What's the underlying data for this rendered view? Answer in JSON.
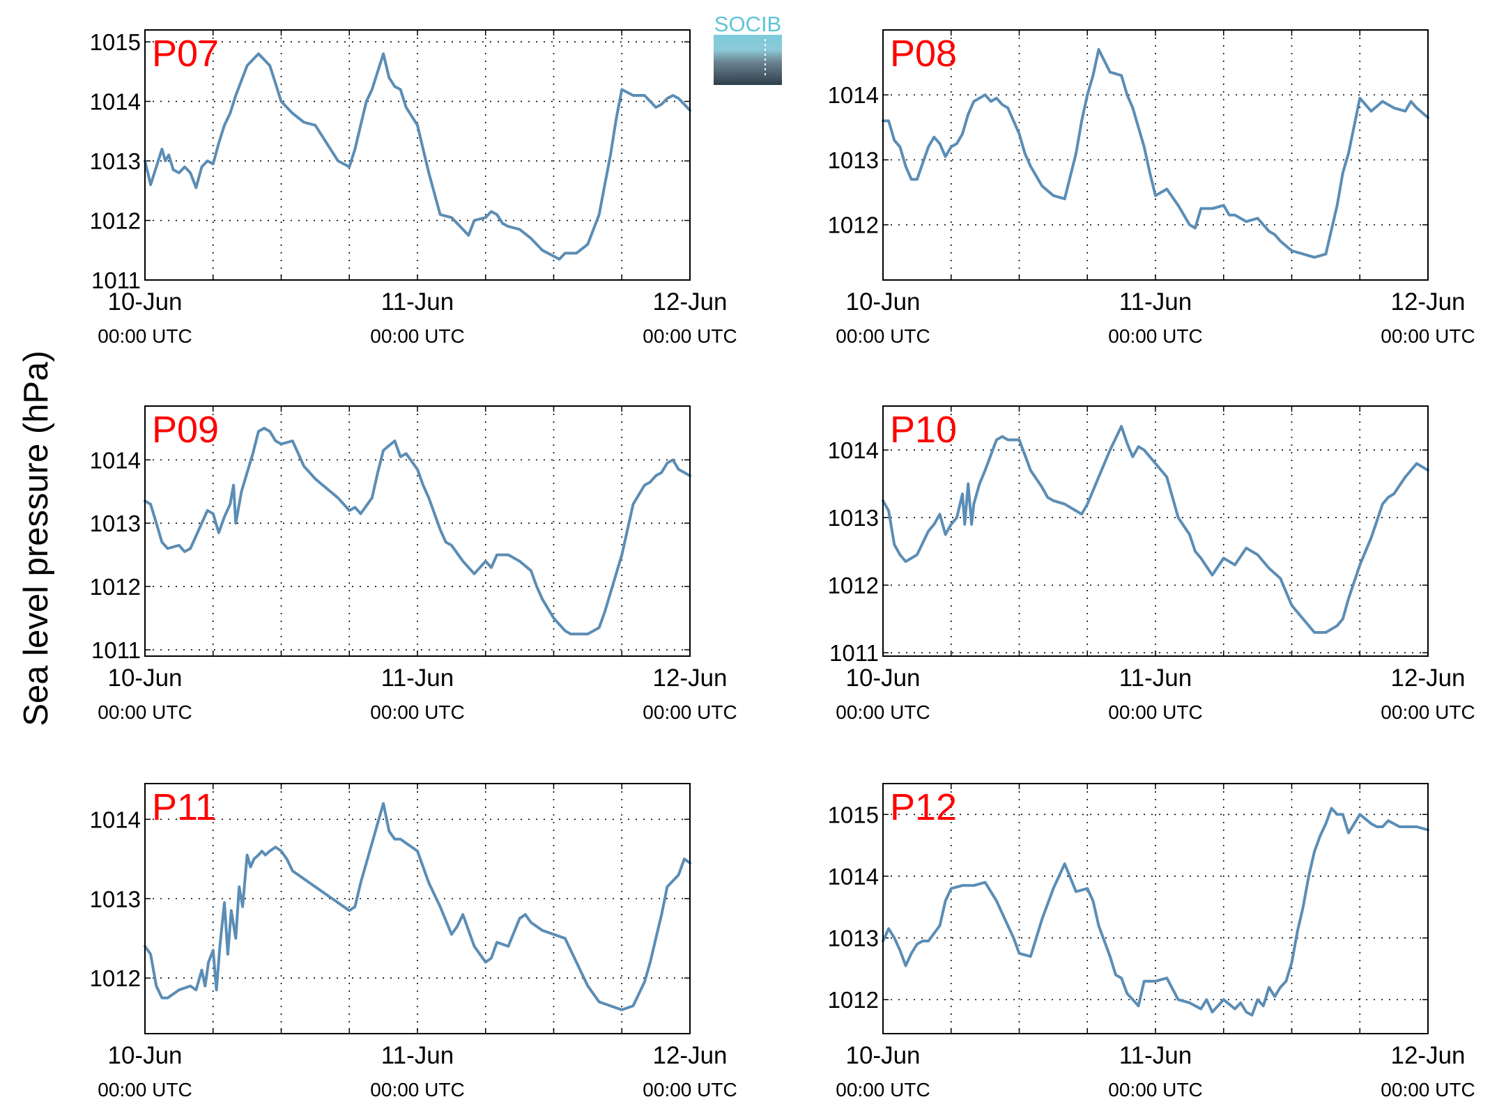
{
  "figure": {
    "ylabel": "Sea level pressure (hPa)",
    "logo_text": "SOCIB"
  },
  "colors": {
    "line": "#5b8db5",
    "panel_label": "#ff0000",
    "grid": "#000000",
    "logo_top": "#7ccbdb",
    "logo_bottom": "#2e3f4a"
  },
  "chart_data": [
    {
      "type": "line",
      "label": "P07",
      "grid": true,
      "xlim": [
        0,
        48
      ],
      "ylim": [
        1011,
        1015.2
      ],
      "yticks": [
        1011,
        1012,
        1013,
        1014,
        1015
      ],
      "xticks": [
        {
          "value": 0,
          "date": "10-Jun",
          "time": "00:00 UTC"
        },
        {
          "value": 24,
          "date": "11-Jun",
          "time": "00:00 UTC"
        },
        {
          "value": 48,
          "date": "12-Jun",
          "time": "00:00 UTC"
        }
      ],
      "x": [
        0,
        0.5,
        1,
        1.5,
        1.8,
        2.1,
        2.5,
        3,
        3.5,
        4,
        4.5,
        5,
        5.5,
        6,
        6.5,
        7,
        7.5,
        8,
        9,
        10,
        10.5,
        11,
        11.5,
        12,
        13,
        14,
        15,
        16,
        17,
        18,
        18.5,
        19,
        19.5,
        20,
        21,
        21.5,
        22,
        22.5,
        23,
        24,
        24.5,
        25,
        26,
        27,
        28,
        28.5,
        29,
        30,
        30.5,
        31,
        31.5,
        32,
        33,
        34,
        35,
        36,
        36.5,
        37,
        38,
        39,
        40,
        40.5,
        41,
        41.5,
        42,
        43,
        44,
        45,
        45.5,
        46,
        46.5,
        47,
        48
      ],
      "y": [
        1013.0,
        1012.6,
        1012.9,
        1013.2,
        1013.0,
        1013.1,
        1012.85,
        1012.8,
        1012.9,
        1012.8,
        1012.55,
        1012.9,
        1013.0,
        1012.95,
        1013.3,
        1013.6,
        1013.8,
        1014.1,
        1014.6,
        1014.8,
        1014.7,
        1014.6,
        1014.3,
        1014.0,
        1013.8,
        1013.65,
        1013.6,
        1013.3,
        1013.0,
        1012.9,
        1013.2,
        1013.6,
        1014.0,
        1014.2,
        1014.8,
        1014.4,
        1014.25,
        1014.2,
        1013.9,
        1013.6,
        1013.2,
        1012.8,
        1012.1,
        1012.05,
        1011.85,
        1011.75,
        1012.0,
        1012.05,
        1012.15,
        1012.1,
        1011.95,
        1011.9,
        1011.85,
        1011.7,
        1011.5,
        1011.4,
        1011.35,
        1011.45,
        1011.45,
        1011.6,
        1012.1,
        1012.6,
        1013.1,
        1013.7,
        1014.2,
        1014.1,
        1014.1,
        1013.9,
        1013.95,
        1014.05,
        1014.1,
        1014.05,
        1013.85
      ]
    },
    {
      "type": "line",
      "label": "P08",
      "grid": true,
      "xlim": [
        0,
        48
      ],
      "ylim": [
        1011.15,
        1015.0
      ],
      "yticks": [
        1012,
        1013,
        1014
      ],
      "xticks": [
        {
          "value": 0,
          "date": "10-Jun",
          "time": "00:00 UTC"
        },
        {
          "value": 24,
          "date": "11-Jun",
          "time": "00:00 UTC"
        },
        {
          "value": 48,
          "date": "12-Jun",
          "time": "00:00 UTC"
        }
      ],
      "x": [
        0,
        0.5,
        1,
        1.5,
        2,
        2.5,
        3,
        3.5,
        4,
        4.5,
        5,
        5.5,
        6,
        6.5,
        7,
        7.5,
        8,
        9,
        9.5,
        10,
        10.5,
        11,
        12,
        12.5,
        13,
        14,
        15,
        16,
        17,
        17.5,
        18,
        18.5,
        19,
        20,
        21,
        21.5,
        22,
        22.5,
        23,
        23.5,
        24,
        24.5,
        25,
        26,
        27,
        27.5,
        28,
        29,
        30,
        30.5,
        31,
        32,
        33,
        34,
        34.5,
        35,
        36,
        37,
        38,
        39,
        40,
        40.5,
        41,
        42,
        43,
        44,
        45,
        46,
        46.5,
        47,
        48
      ],
      "y": [
        1013.6,
        1013.6,
        1013.3,
        1013.2,
        1012.9,
        1012.7,
        1012.7,
        1012.95,
        1013.2,
        1013.35,
        1013.25,
        1013.05,
        1013.2,
        1013.25,
        1013.4,
        1013.7,
        1013.9,
        1014.0,
        1013.9,
        1013.95,
        1013.85,
        1013.8,
        1013.4,
        1013.1,
        1012.9,
        1012.6,
        1012.45,
        1012.4,
        1013.1,
        1013.6,
        1014.0,
        1014.3,
        1014.7,
        1014.35,
        1014.3,
        1014.0,
        1013.8,
        1013.5,
        1013.2,
        1012.8,
        1012.45,
        1012.5,
        1012.55,
        1012.3,
        1012.0,
        1011.95,
        1012.25,
        1012.25,
        1012.3,
        1012.15,
        1012.15,
        1012.05,
        1012.1,
        1011.9,
        1011.85,
        1011.75,
        1011.6,
        1011.55,
        1011.5,
        1011.55,
        1012.3,
        1012.8,
        1013.1,
        1013.95,
        1013.75,
        1013.9,
        1013.8,
        1013.75,
        1013.9,
        1013.8,
        1013.65
      ]
    },
    {
      "type": "line",
      "label": "P09",
      "grid": true,
      "xlim": [
        0,
        48
      ],
      "ylim": [
        1010.9,
        1014.85
      ],
      "yticks": [
        1011,
        1012,
        1013,
        1014
      ],
      "xticks": [
        {
          "value": 0,
          "date": "10-Jun",
          "time": "00:00 UTC"
        },
        {
          "value": 24,
          "date": "11-Jun",
          "time": "00:00 UTC"
        },
        {
          "value": 48,
          "date": "12-Jun",
          "time": "00:00 UTC"
        }
      ],
      "x": [
        0,
        0.5,
        1,
        1.5,
        2,
        3,
        3.5,
        4,
        5,
        5.5,
        6,
        6.5,
        7,
        7.5,
        7.8,
        8,
        8.5,
        9,
        9.5,
        10,
        10.5,
        11,
        11.5,
        12,
        13,
        14,
        15,
        16,
        17,
        18,
        18.5,
        19,
        20,
        20.5,
        21,
        22,
        22.5,
        23,
        24,
        24.5,
        25,
        26,
        26.5,
        27,
        28,
        29,
        30,
        30.5,
        31,
        32,
        32.5,
        33,
        34,
        34.5,
        35,
        36,
        37,
        37.5,
        38,
        39,
        40,
        40.5,
        41,
        42,
        43,
        44,
        44.5,
        45,
        45.5,
        46,
        46.5,
        47,
        48
      ],
      "y": [
        1013.35,
        1013.3,
        1013.0,
        1012.7,
        1012.6,
        1012.65,
        1012.55,
        1012.6,
        1013.0,
        1013.2,
        1013.15,
        1012.85,
        1013.1,
        1013.3,
        1013.6,
        1013.0,
        1013.5,
        1013.8,
        1014.1,
        1014.45,
        1014.5,
        1014.45,
        1014.3,
        1014.25,
        1014.3,
        1013.9,
        1013.7,
        1013.55,
        1013.4,
        1013.2,
        1013.25,
        1013.15,
        1013.4,
        1013.8,
        1014.15,
        1014.3,
        1014.05,
        1014.1,
        1013.85,
        1013.6,
        1013.4,
        1012.9,
        1012.7,
        1012.65,
        1012.4,
        1012.2,
        1012.4,
        1012.3,
        1012.5,
        1012.5,
        1012.45,
        1012.4,
        1012.25,
        1012.0,
        1011.8,
        1011.5,
        1011.3,
        1011.25,
        1011.25,
        1011.25,
        1011.35,
        1011.6,
        1011.9,
        1012.5,
        1013.3,
        1013.6,
        1013.65,
        1013.75,
        1013.8,
        1013.95,
        1014.0,
        1013.85,
        1013.75
      ]
    },
    {
      "type": "line",
      "label": "P10",
      "grid": true,
      "xlim": [
        0,
        48
      ],
      "ylim": [
        1010.95,
        1014.65
      ],
      "yticks": [
        1011,
        1012,
        1013,
        1014
      ],
      "xticks": [
        {
          "value": 0,
          "date": "10-Jun",
          "time": "00:00 UTC"
        },
        {
          "value": 24,
          "date": "11-Jun",
          "time": "00:00 UTC"
        },
        {
          "value": 48,
          "date": "12-Jun",
          "time": "00:00 UTC"
        }
      ],
      "x": [
        0,
        0.5,
        1,
        1.5,
        2,
        3,
        4,
        4.5,
        5,
        5.5,
        6,
        6.5,
        7,
        7.2,
        7.5,
        7.8,
        8,
        8.5,
        9,
        10,
        10.5,
        11,
        12,
        13,
        14,
        14.5,
        15,
        16,
        17,
        17.5,
        18,
        19,
        20,
        21,
        21.5,
        22,
        22.5,
        23,
        24,
        25,
        26,
        27,
        27.5,
        28,
        29,
        30,
        31,
        32,
        33,
        34,
        35,
        35.5,
        36,
        37,
        38,
        39,
        40,
        40.5,
        41,
        42,
        43,
        44,
        44.5,
        45,
        46,
        47,
        47.5,
        48
      ],
      "y": [
        1013.25,
        1013.1,
        1012.6,
        1012.45,
        1012.35,
        1012.45,
        1012.8,
        1012.9,
        1013.05,
        1012.75,
        1012.9,
        1013.0,
        1013.35,
        1012.9,
        1013.5,
        1012.9,
        1013.2,
        1013.5,
        1013.7,
        1014.15,
        1014.2,
        1014.15,
        1014.15,
        1013.7,
        1013.45,
        1013.3,
        1013.25,
        1013.2,
        1013.1,
        1013.05,
        1013.2,
        1013.6,
        1014.0,
        1014.35,
        1014.1,
        1013.9,
        1014.05,
        1014.0,
        1013.8,
        1013.6,
        1013.0,
        1012.75,
        1012.5,
        1012.4,
        1012.15,
        1012.4,
        1012.3,
        1012.55,
        1012.45,
        1012.25,
        1012.1,
        1011.9,
        1011.7,
        1011.5,
        1011.3,
        1011.3,
        1011.4,
        1011.5,
        1011.8,
        1012.3,
        1012.7,
        1013.2,
        1013.3,
        1013.35,
        1013.6,
        1013.8,
        1013.75,
        1013.7
      ]
    },
    {
      "type": "line",
      "label": "P11",
      "grid": true,
      "xlim": [
        0,
        48
      ],
      "ylim": [
        1011.3,
        1014.45
      ],
      "yticks": [
        1012,
        1013,
        1014
      ],
      "xticks": [
        {
          "value": 0,
          "date": "10-Jun",
          "time": "00:00 UTC"
        },
        {
          "value": 24,
          "date": "11-Jun",
          "time": "00:00 UTC"
        },
        {
          "value": 48,
          "date": "12-Jun",
          "time": "00:00 UTC"
        }
      ],
      "x": [
        0,
        0.5,
        1,
        1.5,
        2,
        3,
        4,
        4.5,
        5,
        5.3,
        5.6,
        6,
        6.3,
        6.6,
        7,
        7.3,
        7.6,
        8,
        8.3,
        8.6,
        9,
        9.3,
        9.6,
        10,
        10.3,
        10.6,
        11,
        11.5,
        12,
        12.5,
        13,
        14,
        15,
        16,
        17,
        18,
        18.5,
        19,
        20,
        21,
        21.5,
        22,
        22.5,
        23,
        24,
        25,
        26,
        27,
        27.5,
        28,
        29,
        30,
        30.5,
        31,
        32,
        33,
        33.5,
        34,
        35,
        36,
        37,
        38,
        39,
        40,
        41,
        42,
        43,
        44,
        44.5,
        45,
        45.5,
        46,
        47,
        47.5,
        48
      ],
      "y": [
        1012.4,
        1012.3,
        1011.9,
        1011.75,
        1011.75,
        1011.85,
        1011.9,
        1011.85,
        1012.1,
        1011.9,
        1012.2,
        1012.35,
        1011.85,
        1012.4,
        1012.95,
        1012.3,
        1012.85,
        1012.5,
        1013.15,
        1012.9,
        1013.55,
        1013.4,
        1013.5,
        1013.55,
        1013.6,
        1013.55,
        1013.6,
        1013.65,
        1013.6,
        1013.5,
        1013.35,
        1013.25,
        1013.15,
        1013.05,
        1012.95,
        1012.85,
        1012.9,
        1013.2,
        1013.7,
        1014.2,
        1013.85,
        1013.75,
        1013.75,
        1013.7,
        1013.6,
        1013.2,
        1012.9,
        1012.55,
        1012.65,
        1012.8,
        1012.4,
        1012.2,
        1012.25,
        1012.45,
        1012.4,
        1012.75,
        1012.8,
        1012.7,
        1012.6,
        1012.55,
        1012.5,
        1012.2,
        1011.9,
        1011.7,
        1011.65,
        1011.6,
        1011.65,
        1011.95,
        1012.2,
        1012.5,
        1012.8,
        1013.15,
        1013.3,
        1013.5,
        1013.45
      ]
    },
    {
      "type": "line",
      "label": "P12",
      "grid": true,
      "xlim": [
        0,
        48
      ],
      "ylim": [
        1011.45,
        1015.5
      ],
      "yticks": [
        1012,
        1013,
        1014,
        1015
      ],
      "xticks": [
        {
          "value": 0,
          "date": "10-Jun",
          "time": "00:00 UTC"
        },
        {
          "value": 24,
          "date": "11-Jun",
          "time": "00:00 UTC"
        },
        {
          "value": 48,
          "date": "12-Jun",
          "time": "00:00 UTC"
        }
      ],
      "x": [
        0,
        0.5,
        1,
        1.5,
        2,
        2.5,
        3,
        3.5,
        4,
        5,
        5.5,
        6,
        7,
        8,
        9,
        10,
        11,
        11.5,
        12,
        13,
        14,
        15,
        16,
        17,
        18,
        18.5,
        19,
        20,
        20.5,
        21,
        21.5,
        22,
        22.5,
        23,
        24,
        25,
        26,
        27,
        28,
        28.5,
        29,
        30,
        31,
        31.5,
        32,
        32.5,
        33,
        33.5,
        34,
        34.5,
        35,
        35.5,
        36,
        36.5,
        37,
        37.5,
        38,
        38.5,
        39,
        39.5,
        40,
        40.5,
        41,
        42,
        43,
        43.5,
        44,
        44.5,
        45,
        45.5,
        46,
        46.5,
        47,
        48
      ],
      "y": [
        1012.95,
        1013.15,
        1013.0,
        1012.8,
        1012.55,
        1012.75,
        1012.9,
        1012.95,
        1012.95,
        1013.2,
        1013.6,
        1013.8,
        1013.85,
        1013.85,
        1013.9,
        1013.6,
        1013.2,
        1013.0,
        1012.75,
        1012.7,
        1013.3,
        1013.8,
        1014.2,
        1013.75,
        1013.8,
        1013.6,
        1013.2,
        1012.7,
        1012.4,
        1012.35,
        1012.1,
        1012.0,
        1011.9,
        1012.3,
        1012.3,
        1012.35,
        1012.0,
        1011.95,
        1011.85,
        1012.0,
        1011.8,
        1012.0,
        1011.85,
        1011.95,
        1011.8,
        1011.75,
        1012.0,
        1011.9,
        1012.2,
        1012.05,
        1012.2,
        1012.3,
        1012.6,
        1013.1,
        1013.5,
        1014.0,
        1014.4,
        1014.65,
        1014.85,
        1015.1,
        1015.0,
        1015.0,
        1014.7,
        1015.0,
        1014.85,
        1014.8,
        1014.8,
        1014.9,
        1014.85,
        1014.8,
        1014.8,
        1014.8,
        1014.8,
        1014.75
      ]
    }
  ]
}
